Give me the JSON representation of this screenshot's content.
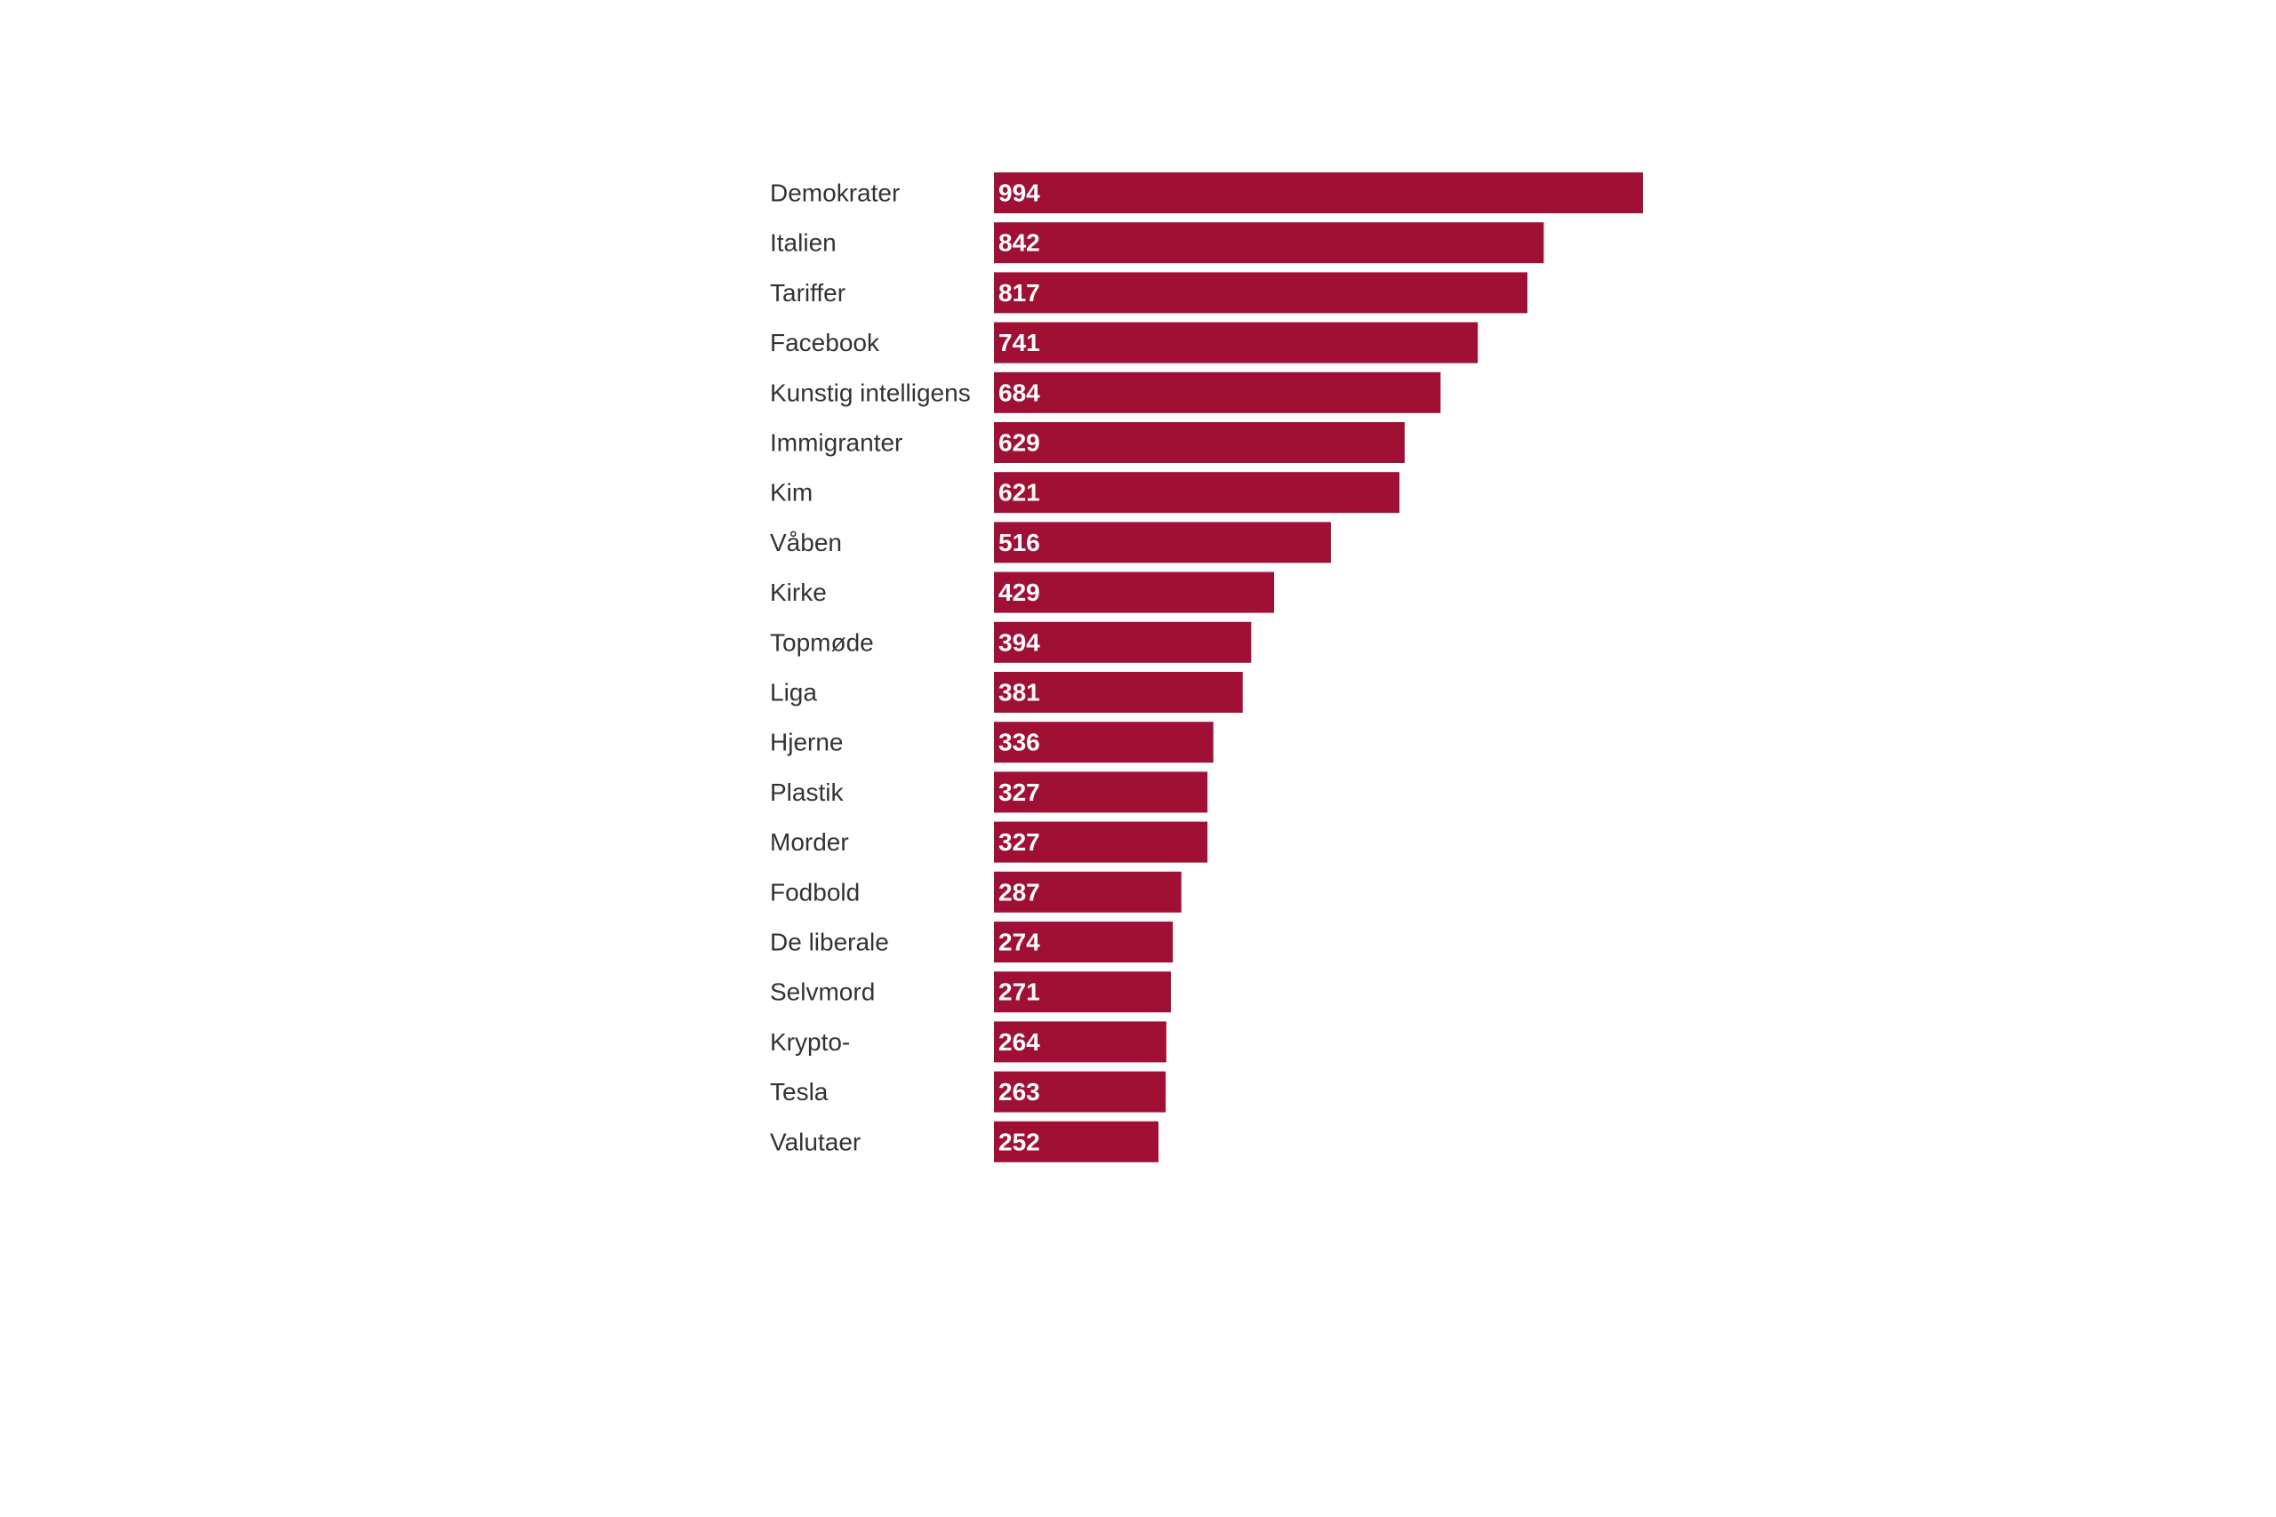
{
  "colors": {
    "bar": "#a01035",
    "category_text": "#333333",
    "value_text": "#ffffff",
    "background": "#ffffff"
  },
  "chart_data": {
    "type": "bar",
    "orientation": "horizontal",
    "categories": [
      "Demokrater",
      "Italien",
      "Tariffer",
      "Facebook",
      "Kunstig intelligens",
      "Immigranter",
      "Kim",
      "Våben",
      "Kirke",
      "Topmøde",
      "Liga",
      "Hjerne",
      "Plastik",
      "Morder",
      "Fodbold",
      "De liberale",
      "Selvmord",
      "Krypto-",
      "Tesla",
      "Valutaer"
    ],
    "values": [
      994,
      842,
      817,
      741,
      684,
      629,
      621,
      516,
      429,
      394,
      381,
      336,
      327,
      327,
      287,
      274,
      271,
      264,
      263,
      252
    ],
    "value_labels": [
      "994",
      "842",
      "817",
      "741",
      "684",
      "629",
      "621",
      "516",
      "429",
      "394",
      "381",
      "336",
      "327",
      "327",
      "287",
      "274",
      "271",
      "264",
      "263",
      "252"
    ],
    "title": "",
    "xlabel": "",
    "ylabel": "",
    "xlim": [
      0,
      994
    ],
    "grid": false,
    "legend": "none"
  }
}
